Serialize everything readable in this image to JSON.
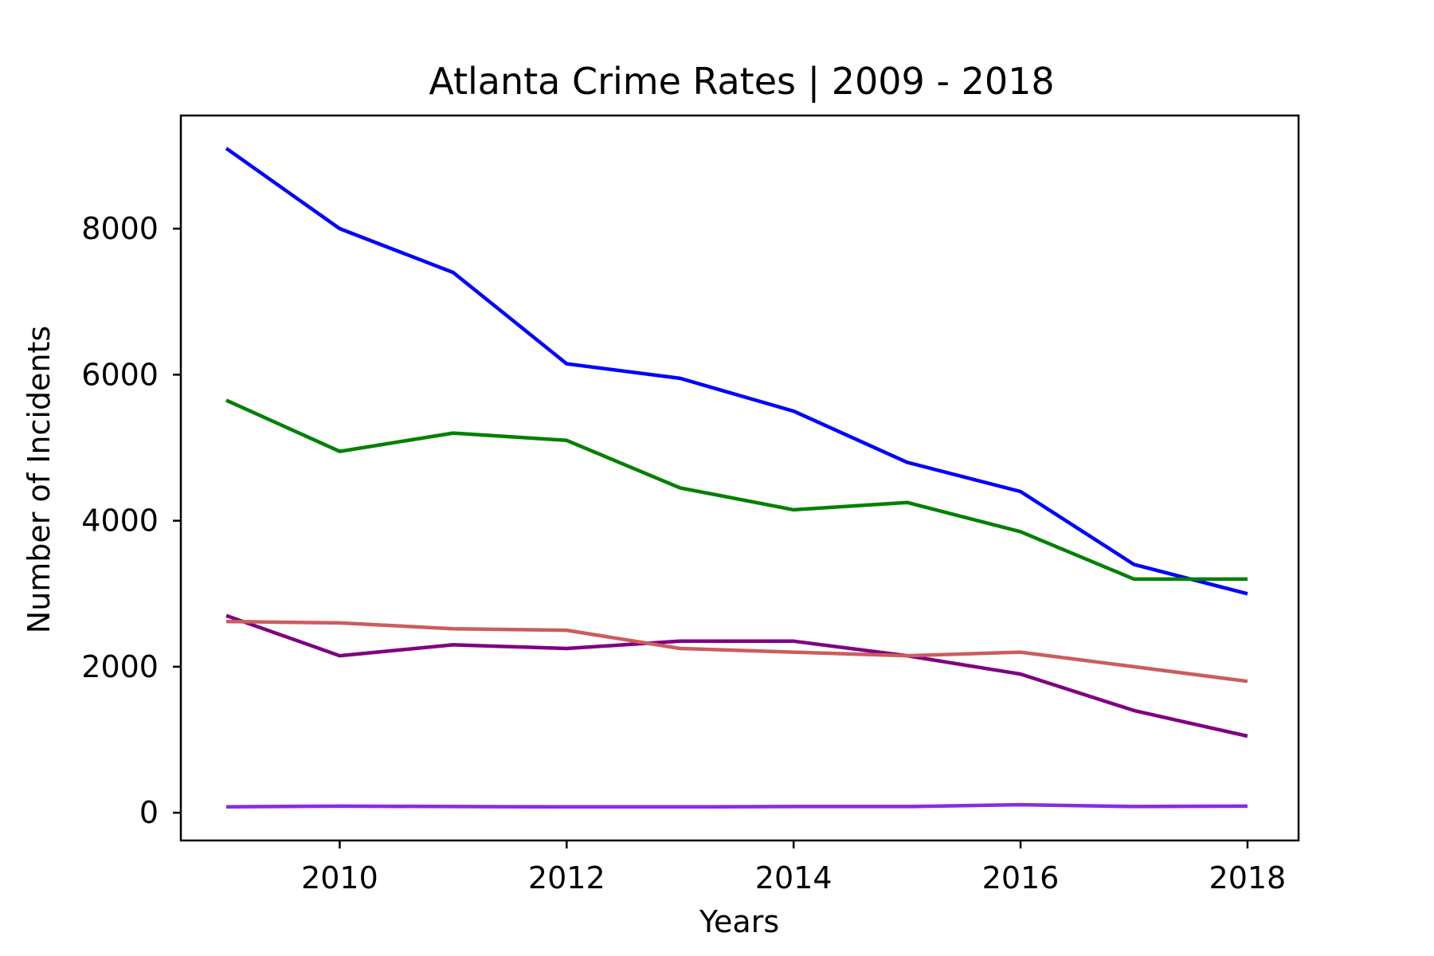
{
  "chart_data": {
    "type": "line",
    "title": "Atlanta Crime Rates | 2009 - 2018",
    "xlabel": "Years",
    "ylabel": "Number of Incidents",
    "xlim": [
      2008.6,
      2018.45
    ],
    "ylim": [
      -380,
      9550
    ],
    "xticks": [
      2010,
      2012,
      2014,
      2016,
      2018
    ],
    "xtick_labels": [
      "2010",
      "2012",
      "2014",
      "2016",
      "2018"
    ],
    "yticks": [
      0,
      2000,
      4000,
      6000,
      8000
    ],
    "ytick_labels": [
      "0",
      "2000",
      "4000",
      "6000",
      "8000"
    ],
    "grid": false,
    "legend": "none",
    "x": [
      2009,
      2010,
      2011,
      2012,
      2013,
      2014,
      2015,
      2016,
      2017,
      2018
    ],
    "series": [
      {
        "color": "#0000ff",
        "values": [
          9100,
          8000,
          7400,
          6150,
          5950,
          5500,
          4800,
          4400,
          3400,
          3000
        ]
      },
      {
        "color": "#008000",
        "values": [
          5650,
          4950,
          5200,
          5100,
          4450,
          4150,
          4250,
          3850,
          3200,
          3200
        ]
      },
      {
        "color": "#800080",
        "values": [
          2700,
          2150,
          2300,
          2250,
          2350,
          2350,
          2150,
          1900,
          1400,
          1050
        ]
      },
      {
        "color": "#cd5c5c",
        "values": [
          2620,
          2600,
          2520,
          2500,
          2250,
          2200,
          2150,
          2200,
          2000,
          1800
        ]
      },
      {
        "color": "#8a2be2",
        "values": [
          80,
          90,
          85,
          80,
          80,
          85,
          85,
          110,
          85,
          90
        ]
      }
    ]
  }
}
